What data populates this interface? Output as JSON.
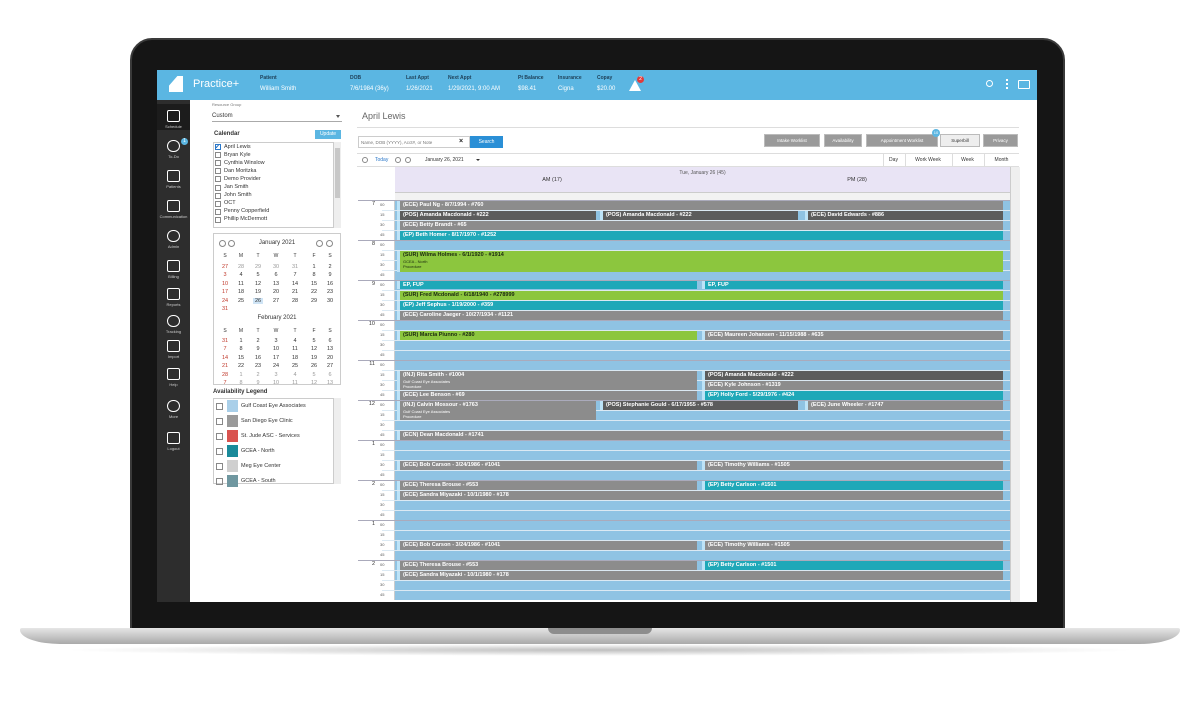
{
  "top_bar": {
    "app_name": "Practice+",
    "alert_count": "2",
    "fields": [
      {
        "label": "Patient",
        "value": "William Smith"
      },
      {
        "label": "DOB",
        "value": "7/6/1984 (36y)"
      },
      {
        "label": "Last Appt",
        "value": "1/26/2021"
      },
      {
        "label": "Next Appt",
        "value": "1/29/2021, 9:00 AM"
      },
      {
        "label": "Pt Balance",
        "value": "$98.41"
      },
      {
        "label": "Insurance",
        "value": "Cigna"
      },
      {
        "label": "Copay",
        "value": "$20.00"
      }
    ]
  },
  "sidebar": {
    "todo_badge": "1",
    "items": [
      "Schedule",
      "To-Do",
      "Patients",
      "Communication",
      "Admin",
      "Billing",
      "Reports",
      "Tracking",
      "Import",
      "Help",
      "More",
      "Logout"
    ]
  },
  "left_panel": {
    "resource_group_label": "Resource Group",
    "resource_group": "Custom",
    "calendar_title": "Calendar",
    "update_button": "Update",
    "calendars": [
      {
        "name": "April Lewis",
        "checked": true
      },
      {
        "name": "Bryan Kyle",
        "checked": false
      },
      {
        "name": "Cynthia Winslow",
        "checked": false
      },
      {
        "name": "Dan Moritzka",
        "checked": false
      },
      {
        "name": "Demo Provider",
        "checked": false
      },
      {
        "name": "Jan Smith",
        "checked": false
      },
      {
        "name": "John Smith",
        "checked": false
      },
      {
        "name": "OCT",
        "checked": false
      },
      {
        "name": "Penny Copperfield",
        "checked": false
      },
      {
        "name": "Phillip McDermott",
        "checked": false
      }
    ],
    "months": [
      {
        "title": "January 2021",
        "weekdays": [
          "S",
          "M",
          "T",
          "W",
          "T",
          "F",
          "S"
        ],
        "weeks": [
          [
            27,
            28,
            29,
            30,
            31,
            1,
            2
          ],
          [
            3,
            4,
            5,
            6,
            7,
            8,
            9
          ],
          [
            10,
            11,
            12,
            13,
            14,
            15,
            16
          ],
          [
            17,
            18,
            19,
            20,
            21,
            22,
            23
          ],
          [
            24,
            25,
            26,
            27,
            28,
            29,
            30
          ],
          [
            31
          ]
        ]
      },
      {
        "title": "February 2021",
        "weekdays": [
          "S",
          "M",
          "T",
          "W",
          "T",
          "F",
          "S"
        ],
        "weeks": [
          [
            31,
            1,
            2,
            3,
            4,
            5,
            6
          ],
          [
            7,
            8,
            9,
            10,
            11,
            12,
            13
          ],
          [
            14,
            15,
            16,
            17,
            18,
            19,
            20
          ],
          [
            21,
            22,
            23,
            24,
            25,
            26,
            27
          ],
          [
            28,
            1,
            2,
            3,
            4,
            5,
            6
          ],
          [
            7,
            8,
            9,
            10,
            11,
            12,
            13
          ]
        ]
      }
    ],
    "legend_title": "Availability Legend",
    "legend": [
      {
        "name": "Gulf Coast Eye Associates",
        "color": "#a9cfe9"
      },
      {
        "name": "San Diego Eye Clinic",
        "color": "#9a9a9a"
      },
      {
        "name": "St. Jude ASC - Services",
        "color": "#d9534f"
      },
      {
        "name": "GCEA - North",
        "color": "#1a8a9a"
      },
      {
        "name": "Meg Eye Center",
        "color": "#cfcfcf"
      },
      {
        "name": "GCEA - South",
        "color": "#6f97a0"
      }
    ]
  },
  "main": {
    "title": "April Lewis",
    "search_placeholder": "Name, DOB (YYYY), Acct#, or Note",
    "search_button": "Search",
    "buttons": [
      "Intake Worklist",
      "Availability",
      "Appointment Worklist",
      "Superbill",
      "Privacy"
    ],
    "worklist_badge": "10",
    "today": "Today",
    "date": "January 26, 2021",
    "views": [
      "Day",
      "Work Week",
      "Week",
      "Month"
    ],
    "day_header": "Tue, January 26 (45)",
    "am": "AM (17)",
    "pm": "PM (28)",
    "hours": [
      "7",
      "8",
      "9",
      "10",
      "11",
      "12",
      "1",
      "2",
      "1",
      "2"
    ],
    "minutes": [
      "00",
      "15",
      "30",
      "45"
    ],
    "appointments": [
      {
        "text": "(ECE) Paul Ng - 8/7/1994 - #760",
        "color": "#8c8c8c"
      },
      {
        "text": "(POS) Amanda Macdonald - #222",
        "color": "#5c5c5c"
      },
      {
        "text": "(POS) Amanda Macdonald - #222",
        "color": "#5c5c5c"
      },
      {
        "text": "(ECE) David Edwards - #886",
        "color": "#5c5c5c"
      },
      {
        "text": "(ECE) Betty Brandt - #65",
        "color": "#8c8c8c"
      },
      {
        "text": "(EP) Beth Homer - 8/17/1970 - #1252",
        "color": "#1fa8b8"
      },
      {
        "text": "(SUR) Wilma Holmes - 6/1/1920 - #1914",
        "color": "#8cc63e",
        "details": [
          "GCEA - North",
          "Procedure"
        ]
      },
      {
        "text": "EP, FUP",
        "color": "#1fa8b8"
      },
      {
        "text": "EP, FUP",
        "color": "#1fa8b8"
      },
      {
        "text": "(SUR) Fred Mcdonald - 6/18/1940 - #278999",
        "color": "#8cc63e"
      },
      {
        "text": "(EP) Jeff Sephus - 1/19/2000 - #359",
        "color": "#1fa8b8"
      },
      {
        "text": "(ECE) Caroline Jaeger - 10/27/1934 - #1121",
        "color": "#8c8c8c"
      },
      {
        "text": "(SUR) Marcia Piunno - #280",
        "color": "#8cc63e"
      },
      {
        "text": "(ECE) Maureen Johansen - 11/15/1988 - #635",
        "color": "#8c8c8c"
      },
      {
        "text": "(INJ) Rita Smith - #1004",
        "color": "#8c8c8c",
        "details": [
          "Gulf Coast Eye Associates",
          "Procedure"
        ]
      },
      {
        "text": "(POS) Amanda Macdonald - #222",
        "color": "#5c5c5c"
      },
      {
        "text": "(ECE) Kyle Johnson - #1319",
        "color": "#8c8c8c"
      },
      {
        "text": "(ECE) Lee Benson - #69",
        "color": "#8c8c8c"
      },
      {
        "text": "(EP) Holly Ford - 5/29/1976 - #424",
        "color": "#1fa8b8"
      },
      {
        "text": "(INJ) Calvin Mossour - #1763",
        "color": "#8c8c8c",
        "details": [
          "Gulf Coast Eye Associates",
          "Procedure"
        ]
      },
      {
        "text": "(POS) Stephanie Gould - 6/17/1955 - #578",
        "color": "#5c5c5c"
      },
      {
        "text": "(ECE) June Wheeler - #1747",
        "color": "#8c8c8c"
      },
      {
        "text": "(ECN) Dean Macdonald - #1741",
        "color": "#8c8c8c"
      },
      {
        "text": "(ECE) Bob Carson - 3/24/1986 - #1041",
        "color": "#8c8c8c"
      },
      {
        "text": "(ECE) Timothy Williams - #1505",
        "color": "#8c8c8c"
      },
      {
        "text": "(ECE) Theresa Brouse - #553",
        "color": "#8c8c8c"
      },
      {
        "text": "(EP) Betty Carlson - #1501",
        "color": "#1fa8b8"
      },
      {
        "text": "(ECE) Sandra Miyazaki - 10/1/1980 - #178",
        "color": "#8c8c8c"
      },
      {
        "text": "(ECE) Bob Carson - 3/24/1986 - #1041",
        "color": "#8c8c8c"
      },
      {
        "text": "(ECE) Timothy Williams - #1505",
        "color": "#8c8c8c"
      },
      {
        "text": "(ECE) Theresa Brouse - #553",
        "color": "#8c8c8c"
      },
      {
        "text": "(EP) Betty Carlson - #1501",
        "color": "#1fa8b8"
      },
      {
        "text": "(ECE) Sandra Miyazaki - 10/1/1980 - #178",
        "color": "#8c8c8c"
      }
    ]
  }
}
